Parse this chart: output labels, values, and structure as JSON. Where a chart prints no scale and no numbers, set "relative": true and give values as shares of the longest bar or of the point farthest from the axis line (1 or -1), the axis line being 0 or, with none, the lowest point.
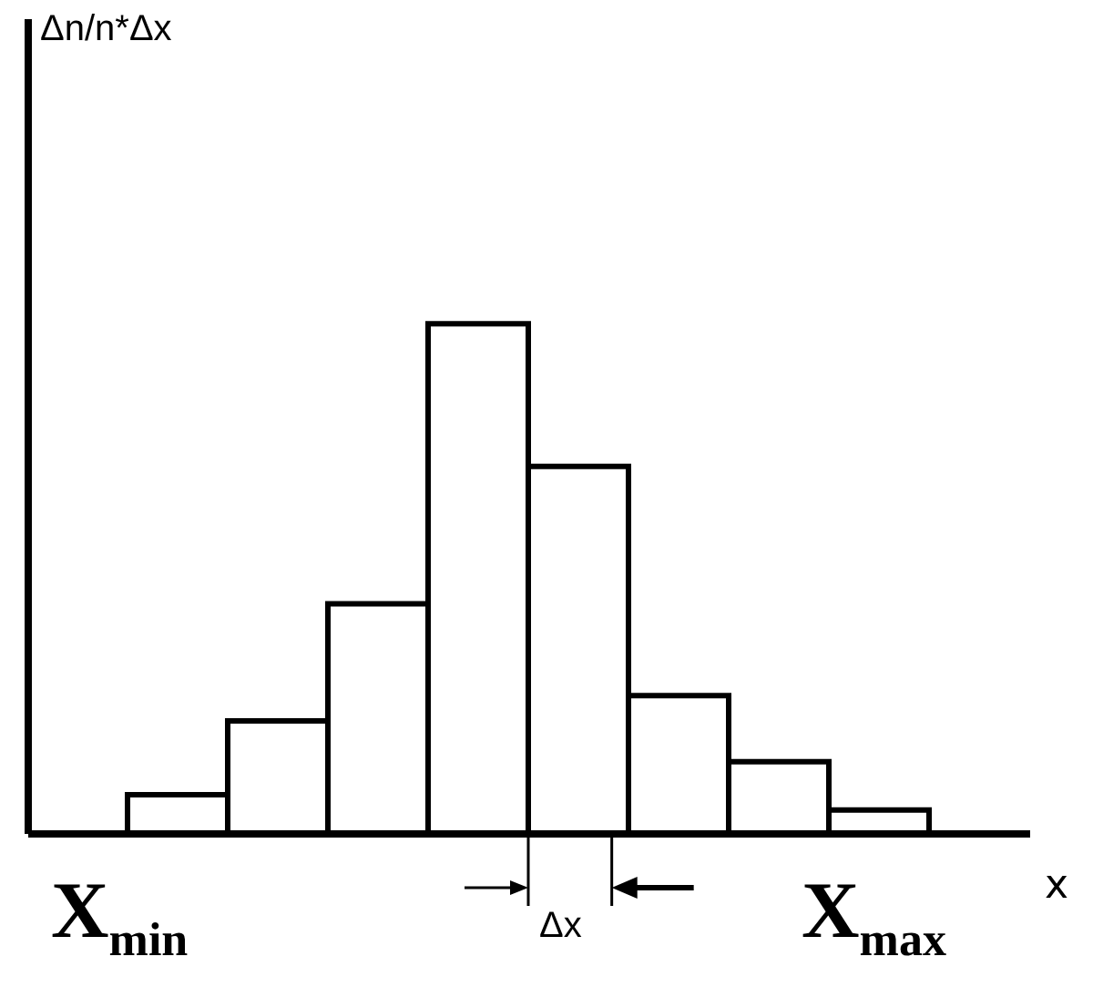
{
  "chart_data": {
    "type": "bar",
    "relative": true,
    "xlabel": "x",
    "categories": [
      null,
      null,
      null,
      null,
      null,
      null,
      null,
      null
    ],
    "values": [
      0.075,
      0.22,
      0.45,
      1,
      0.72,
      0.27,
      0.14,
      0.045
    ],
    "color": "#ffffff",
    "grid": false,
    "annotations": [
      "Δn/n*Δx",
      "X$_{min}$",
      "Δx",
      "X$_{max}$"
    ]
  }
}
